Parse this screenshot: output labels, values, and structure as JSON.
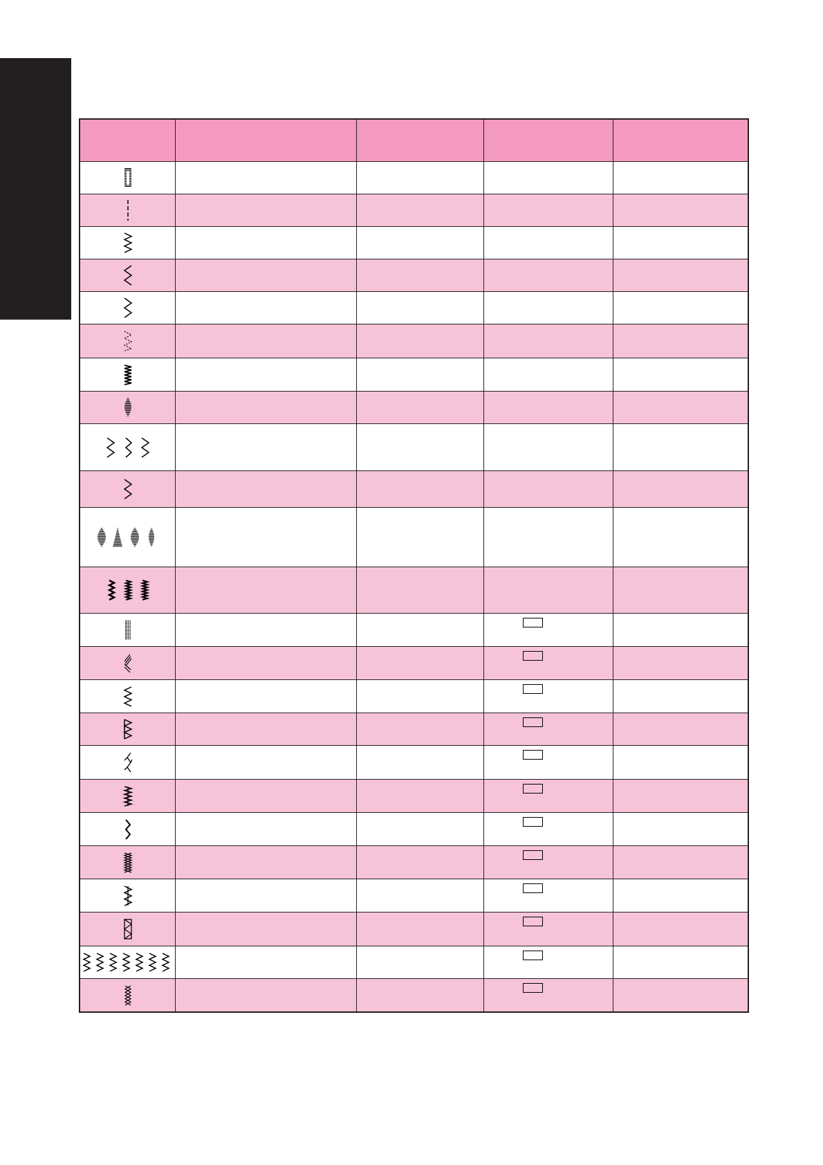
{
  "colors": {
    "header": "#f49ac1",
    "row_alt": "#f7c3d9",
    "row": "#ffffff",
    "border": "#231f20",
    "side_tab": "#231f20"
  },
  "table": {
    "header": [
      "",
      "",
      "",
      "",
      ""
    ],
    "rows": [
      {
        "icon": "buttonhole-stitch-icon",
        "box": false
      },
      {
        "icon": "straight-stitch-icon",
        "box": false
      },
      {
        "icon": "zigzag-stitch-icon",
        "box": false
      },
      {
        "icon": "zigzag-left-icon",
        "box": false
      },
      {
        "icon": "zigzag-right-icon",
        "box": false
      },
      {
        "icon": "triple-zigzag-icon",
        "box": false
      },
      {
        "icon": "tricot-zigzag-icon",
        "box": false
      },
      {
        "icon": "satin-crescent-icon",
        "box": false
      },
      {
        "icon": "zigzag-group-icon",
        "box": false
      },
      {
        "icon": "blind-hem-icon",
        "box": false
      },
      {
        "icon": "satin-shapes-group-icon",
        "box": false
      },
      {
        "icon": "decorative-group-icon",
        "box": false
      },
      {
        "icon": "triple-straight-icon",
        "box": true
      },
      {
        "icon": "diagonal-satin-icon",
        "box": true
      },
      {
        "icon": "overcast-icon",
        "box": true
      },
      {
        "icon": "overcast-edge-icon",
        "box": true
      },
      {
        "icon": "feather-stitch-icon",
        "box": true
      },
      {
        "icon": "stretch-overcast-icon",
        "box": true
      },
      {
        "icon": "rickrack-icon",
        "box": true
      },
      {
        "icon": "cross-stitch-icon",
        "box": true
      },
      {
        "icon": "smocking-icon",
        "box": true
      },
      {
        "icon": "box-overlock-icon",
        "box": true
      },
      {
        "icon": "stretch-group-icon",
        "box": true
      },
      {
        "icon": "cross-zigzag-icon",
        "box": true
      }
    ]
  }
}
